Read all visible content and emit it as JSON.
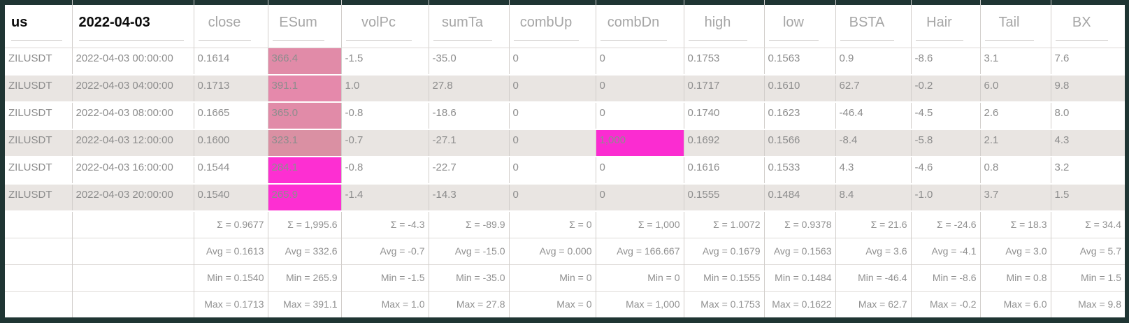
{
  "table": {
    "headers": [
      {
        "label": "us",
        "dark": true
      },
      {
        "label": "2022-04-03",
        "dark": true
      },
      {
        "label": "close"
      },
      {
        "label": "ESum"
      },
      {
        "label": "volPc"
      },
      {
        "label": "sumTa"
      },
      {
        "label": "combUp"
      },
      {
        "label": "combDn"
      },
      {
        "label": "high"
      },
      {
        "label": "low"
      },
      {
        "label": "BSTA"
      },
      {
        "label": "Hair"
      },
      {
        "label": "Tail"
      },
      {
        "label": "BX"
      }
    ],
    "rows": [
      {
        "cells": [
          "ZILUSDT",
          "2022-04-03 00:00:00",
          "0.1614",
          "366.4",
          "-1.5",
          "-35.0",
          "0",
          "0",
          "0.1753",
          "0.1563",
          "0.9",
          "-8.6",
          "3.1",
          "7.6"
        ],
        "cell_colors": {
          "3": "#e18ba8"
        }
      },
      {
        "cells": [
          "ZILUSDT",
          "2022-04-03 04:00:00",
          "0.1713",
          "391.1",
          "1.0",
          "27.8",
          "0",
          "0",
          "0.1717",
          "0.1610",
          "62.7",
          "-0.2",
          "6.0",
          "9.8"
        ],
        "cell_colors": {
          "3": "#e589ab"
        }
      },
      {
        "cells": [
          "ZILUSDT",
          "2022-04-03 08:00:00",
          "0.1665",
          "365.0",
          "-0.8",
          "-18.6",
          "0",
          "0",
          "0.1740",
          "0.1623",
          "-46.4",
          "-4.5",
          "2.6",
          "8.0"
        ],
        "cell_colors": {
          "3": "#e18ba8"
        }
      },
      {
        "cells": [
          "ZILUSDT",
          "2022-04-03 12:00:00",
          "0.1600",
          "323.1",
          "-0.7",
          "-27.1",
          "0",
          "1,000",
          "0.1692",
          "0.1566",
          "-8.4",
          "-5.8",
          "2.1",
          "4.3"
        ],
        "cell_colors": {
          "3": "#da90a3",
          "7": "#fb2cd1"
        }
      },
      {
        "cells": [
          "ZILUSDT",
          "2022-04-03 16:00:00",
          "0.1544",
          "284.1",
          "-0.8",
          "-22.7",
          "0",
          "0",
          "0.1616",
          "0.1533",
          "4.3",
          "-4.6",
          "0.8",
          "3.2"
        ],
        "cell_colors": {
          "3": "#fd2fd2"
        }
      },
      {
        "cells": [
          "ZILUSDT",
          "2022-04-03 20:00:00",
          "0.1540",
          "265.9",
          "-1.4",
          "-14.3",
          "0",
          "0",
          "0.1555",
          "0.1484",
          "8.4",
          "-1.0",
          "3.7",
          "1.5"
        ],
        "cell_colors": {
          "3": "#fd2fd2"
        }
      }
    ],
    "summary_rows": [
      {
        "name": "sum",
        "cells": [
          "",
          "",
          "Σ = 0.9677",
          "Σ = 1,995.6",
          "Σ = -4.3",
          "Σ = -89.9",
          "Σ = 0",
          "Σ = 1,000",
          "Σ = 1.0072",
          "Σ = 0.9378",
          "Σ = 21.6",
          "Σ = -24.6",
          "Σ = 18.3",
          "Σ = 34.4"
        ]
      },
      {
        "name": "avg",
        "cells": [
          "",
          "",
          "Avg = 0.1613",
          "Avg = 332.6",
          "Avg = -0.7",
          "Avg = -15.0",
          "Avg = 0.000",
          "Avg = 166.667",
          "Avg = 0.1679",
          "Avg = 0.1563",
          "Avg = 3.6",
          "Avg = -4.1",
          "Avg = 3.0",
          "Avg = 5.7"
        ]
      },
      {
        "name": "min",
        "cells": [
          "",
          "",
          "Min = 0.1540",
          "Min = 265.9",
          "Min = -1.5",
          "Min = -35.0",
          "Min = 0",
          "Min = 0",
          "Min = 0.1555",
          "Min = 0.1484",
          "Min = -46.4",
          "Min = -8.6",
          "Min = 0.8",
          "Min = 1.5"
        ]
      },
      {
        "name": "max",
        "cells": [
          "",
          "",
          "Max = 0.1713",
          "Max = 391.1",
          "Max = 1.0",
          "Max = 27.8",
          "Max = 0",
          "Max = 1,000",
          "Max = 0.1753",
          "Max = 0.1622",
          "Max = 62.7",
          "Max = -0.2",
          "Max = 6.0",
          "Max = 9.8"
        ]
      }
    ]
  },
  "colors": {
    "frame_border": "#1f3533",
    "grid_line": "#d2cecb",
    "alt_row_bg": "#e9e5e2",
    "header_text": "#a6a6a6",
    "data_text": "#8d8d8d",
    "header_underline": "#c9c6c3",
    "esum_pink": "#e18ba8",
    "esum_dusty_pink": "#da90a3",
    "highlight_magenta": "#fd2fd2"
  }
}
